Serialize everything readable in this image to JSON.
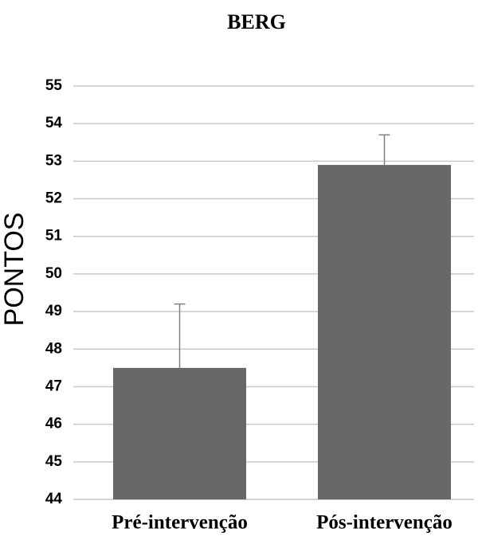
{
  "chart_data": {
    "type": "bar",
    "title": "BERG",
    "y_label": "PONTOS",
    "categories": [
      "Pré-intervenção",
      "Pós-intervenção"
    ],
    "values": [
      47.5,
      52.9
    ],
    "errors": [
      1.7,
      0.8
    ],
    "color": "#686868",
    "ylim": [
      44,
      55
    ],
    "yticks": [
      44,
      45,
      46,
      47,
      48,
      49,
      50,
      51,
      52,
      53,
      54,
      55
    ],
    "grid": true
  }
}
